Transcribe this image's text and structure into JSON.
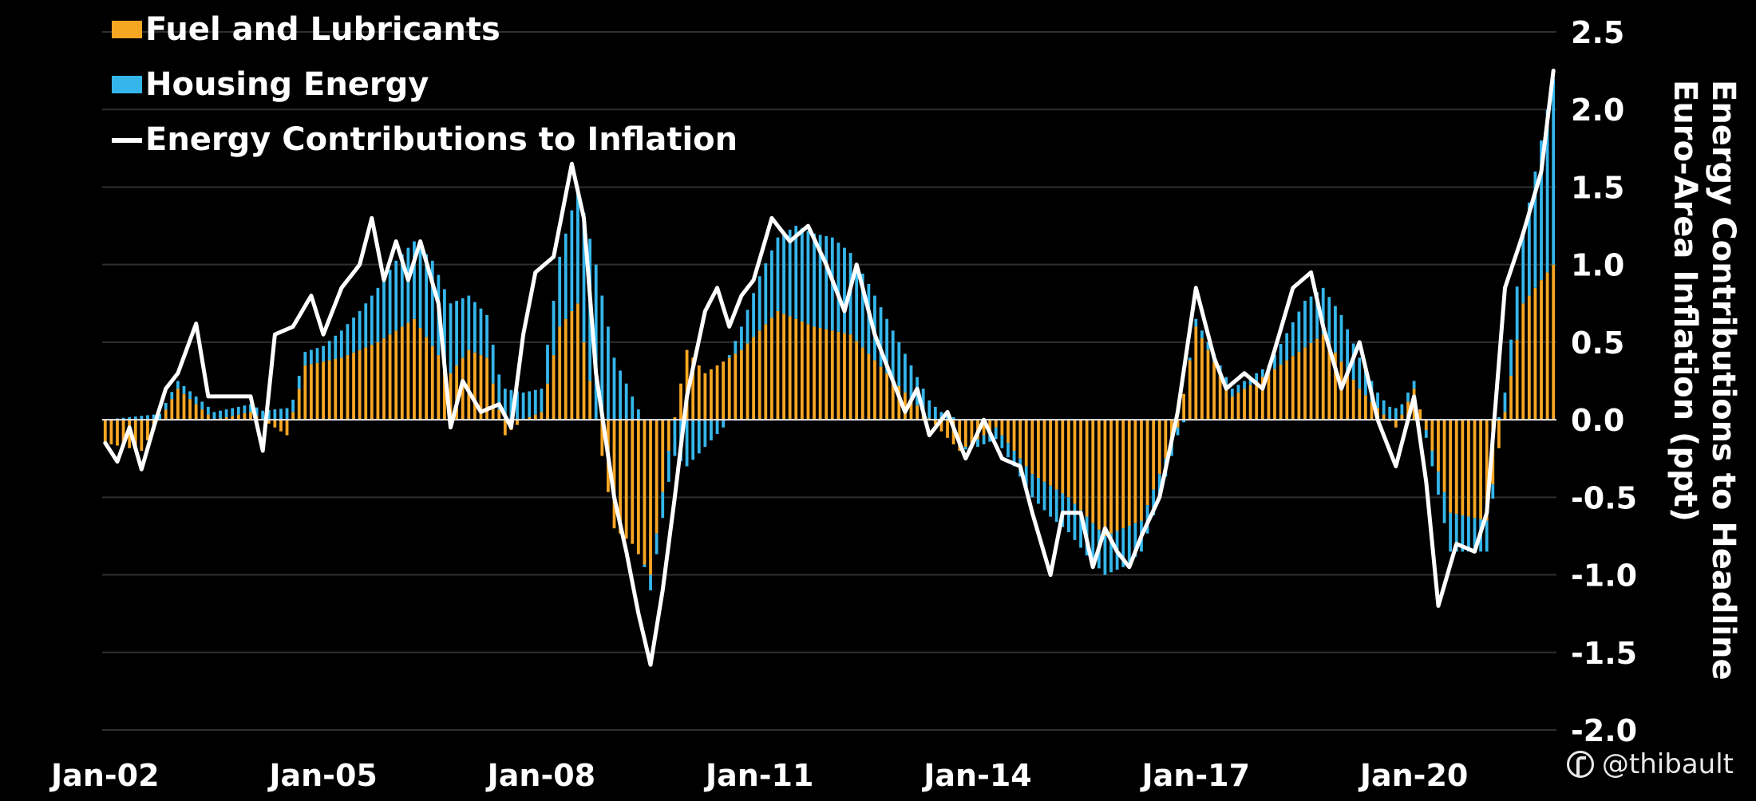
{
  "chart_data": {
    "type": "bar",
    "ylabel": "Energy Contributions to Headline Euro-Area Inflation (ppt)",
    "ylabel_lines": [
      "Energy Contributions to Headline",
      "Euro-Area Inflation (ppt)"
    ],
    "ylim": [
      -2.0,
      2.5
    ],
    "yticks": [
      -2.0,
      -1.5,
      -1.0,
      -0.5,
      0.0,
      0.5,
      1.0,
      1.5,
      2.0,
      2.5
    ],
    "ytick_labels": [
      "-2.0",
      "-1.5",
      "-1.0",
      "-0.5",
      "0.0",
      "0.5",
      "1.0",
      "1.5",
      "2.0",
      "2.5"
    ],
    "y_axis_side": "right",
    "x_start": "Jan-02",
    "xtick_labels": [
      "Jan-02",
      "Jan-05",
      "Jan-08",
      "Jan-11",
      "Jan-14",
      "Jan-17",
      "Jan-20"
    ],
    "grid": true,
    "legend_position": "top-left",
    "stacked": true,
    "frequency": "monthly",
    "series": [
      {
        "name": "Fuel and Lubricants",
        "kind": "bar",
        "color": "#F6A623",
        "anchors": [
          [
            "Jan-02",
            -0.15
          ],
          [
            "Jul-02",
            -0.2
          ],
          [
            "Jan-03",
            0.2
          ],
          [
            "Apr-03",
            0.1
          ],
          [
            "Jul-03",
            0.0
          ],
          [
            "Jan-04",
            0.05
          ],
          [
            "Jul-04",
            -0.1
          ],
          [
            "Oct-04",
            0.35
          ],
          [
            "Apr-05",
            0.4
          ],
          [
            "Oct-05",
            0.5
          ],
          [
            "Apr-06",
            0.65
          ],
          [
            "Oct-06",
            0.3
          ],
          [
            "Jan-07",
            0.45
          ],
          [
            "Apr-07",
            0.4
          ],
          [
            "Jul-07",
            -0.1
          ],
          [
            "Oct-07",
            0.0
          ],
          [
            "Jan-08",
            0.05
          ],
          [
            "Apr-08",
            0.6
          ],
          [
            "Jul-08",
            0.75
          ],
          [
            "Oct-08",
            0.0
          ],
          [
            "Jan-09",
            -0.7
          ],
          [
            "Apr-09",
            -0.8
          ],
          [
            "Jul-09",
            -1.0
          ],
          [
            "Oct-09",
            -0.2
          ],
          [
            "Jan-10",
            0.45
          ],
          [
            "Apr-10",
            0.3
          ],
          [
            "Oct-10",
            0.45
          ],
          [
            "Apr-11",
            0.7
          ],
          [
            "Oct-11",
            0.6
          ],
          [
            "Apr-12",
            0.55
          ],
          [
            "Oct-12",
            0.3
          ],
          [
            "Apr-13",
            0.05
          ],
          [
            "Oct-13",
            -0.2
          ],
          [
            "Apr-14",
            -0.05
          ],
          [
            "Oct-14",
            -0.35
          ],
          [
            "Apr-15",
            -0.5
          ],
          [
            "Oct-15",
            -0.75
          ],
          [
            "Apr-16",
            -0.65
          ],
          [
            "Oct-16",
            -0.05
          ],
          [
            "Jan-17",
            0.6
          ],
          [
            "Jul-17",
            0.15
          ],
          [
            "Jan-18",
            0.3
          ],
          [
            "Oct-18",
            0.55
          ],
          [
            "Apr-19",
            0.2
          ],
          [
            "Oct-19",
            -0.05
          ],
          [
            "Jan-20",
            0.2
          ],
          [
            "Jul-20",
            -0.6
          ],
          [
            "Jan-21",
            -0.65
          ],
          [
            "Jul-21",
            0.75
          ],
          [
            "Dec-21",
            1.0
          ]
        ]
      },
      {
        "name": "Housing Energy",
        "kind": "bar",
        "color": "#35B6EA",
        "anchors": [
          [
            "Jan-02",
            0.0
          ],
          [
            "Jan-03",
            0.05
          ],
          [
            "Jan-04",
            0.05
          ],
          [
            "Jan-05",
            0.1
          ],
          [
            "Jul-05",
            0.25
          ],
          [
            "Jan-06",
            0.45
          ],
          [
            "Jul-06",
            0.55
          ],
          [
            "Jan-07",
            0.35
          ],
          [
            "Jul-07",
            0.2
          ],
          [
            "Jan-08",
            0.15
          ],
          [
            "Jul-08",
            0.75
          ],
          [
            "Oct-08",
            1.0
          ],
          [
            "Jan-09",
            0.4
          ],
          [
            "Jul-09",
            -0.1
          ],
          [
            "Jan-10",
            -0.3
          ],
          [
            "Jul-10",
            -0.05
          ],
          [
            "Jan-11",
            0.35
          ],
          [
            "Jul-11",
            0.6
          ],
          [
            "Jan-12",
            0.6
          ],
          [
            "Jul-12",
            0.45
          ],
          [
            "Jan-13",
            0.25
          ],
          [
            "Jul-13",
            0.05
          ],
          [
            "Jan-14",
            -0.05
          ],
          [
            "Jul-14",
            -0.1
          ],
          [
            "Jan-15",
            -0.2
          ],
          [
            "Jul-15",
            -0.25
          ],
          [
            "Jan-16",
            -0.25
          ],
          [
            "Jul-16",
            -0.15
          ],
          [
            "Jan-17",
            0.05
          ],
          [
            "Jul-17",
            0.05
          ],
          [
            "Jan-18",
            0.05
          ],
          [
            "Jul-18",
            0.3
          ],
          [
            "Jan-19",
            0.3
          ],
          [
            "Jul-19",
            0.1
          ],
          [
            "Jan-20",
            0.05
          ],
          [
            "Jul-20",
            -0.25
          ],
          [
            "Jan-21",
            -0.2
          ],
          [
            "Jul-21",
            0.45
          ],
          [
            "Dec-21",
            1.2
          ]
        ]
      },
      {
        "name": "Energy Contributions to Inflation",
        "kind": "line",
        "color": "#FFFFFF",
        "anchors": [
          [
            "Jan-02",
            -0.15
          ],
          [
            "Mar-02",
            -0.27
          ],
          [
            "May-02",
            -0.05
          ],
          [
            "Jul-02",
            -0.32
          ],
          [
            "Sep-02",
            -0.05
          ],
          [
            "Nov-02",
            0.2
          ],
          [
            "Jan-03",
            0.3
          ],
          [
            "Apr-03",
            0.62
          ],
          [
            "Jun-03",
            0.15
          ],
          [
            "Oct-03",
            0.15
          ],
          [
            "Jan-04",
            0.15
          ],
          [
            "Mar-04",
            -0.2
          ],
          [
            "May-04",
            0.55
          ],
          [
            "Aug-04",
            0.6
          ],
          [
            "Nov-04",
            0.8
          ],
          [
            "Jan-05",
            0.55
          ],
          [
            "Apr-05",
            0.85
          ],
          [
            "Jul-05",
            1.0
          ],
          [
            "Sep-05",
            1.3
          ],
          [
            "Nov-05",
            0.9
          ],
          [
            "Jan-06",
            1.15
          ],
          [
            "Mar-06",
            0.9
          ],
          [
            "May-06",
            1.15
          ],
          [
            "Aug-06",
            0.75
          ],
          [
            "Oct-06",
            -0.05
          ],
          [
            "Dec-06",
            0.25
          ],
          [
            "Mar-07",
            0.05
          ],
          [
            "Jun-07",
            0.1
          ],
          [
            "Aug-07",
            -0.05
          ],
          [
            "Oct-07",
            0.55
          ],
          [
            "Dec-07",
            0.95
          ],
          [
            "Mar-08",
            1.05
          ],
          [
            "Jun-08",
            1.65
          ],
          [
            "Aug-08",
            1.3
          ],
          [
            "Oct-08",
            0.3
          ],
          [
            "Jan-09",
            -0.5
          ],
          [
            "Mar-09",
            -0.85
          ],
          [
            "May-09",
            -1.25
          ],
          [
            "Jul-09",
            -1.58
          ],
          [
            "Sep-09",
            -1.1
          ],
          [
            "Nov-09",
            -0.5
          ],
          [
            "Jan-10",
            0.15
          ],
          [
            "Apr-10",
            0.7
          ],
          [
            "Jun-10",
            0.85
          ],
          [
            "Aug-10",
            0.6
          ],
          [
            "Oct-10",
            0.8
          ],
          [
            "Dec-10",
            0.9
          ],
          [
            "Mar-11",
            1.3
          ],
          [
            "Jun-11",
            1.15
          ],
          [
            "Sep-11",
            1.25
          ],
          [
            "Dec-11",
            1.0
          ],
          [
            "Mar-12",
            0.7
          ],
          [
            "May-12",
            1.0
          ],
          [
            "Aug-12",
            0.55
          ],
          [
            "Oct-12",
            0.35
          ],
          [
            "Jan-13",
            0.05
          ],
          [
            "Mar-13",
            0.2
          ],
          [
            "May-13",
            -0.1
          ],
          [
            "Aug-13",
            0.05
          ],
          [
            "Nov-13",
            -0.25
          ],
          [
            "Feb-14",
            0.0
          ],
          [
            "May-14",
            -0.25
          ],
          [
            "Aug-14",
            -0.3
          ],
          [
            "Oct-14",
            -0.6
          ],
          [
            "Jan-15",
            -1.0
          ],
          [
            "Mar-15",
            -0.6
          ],
          [
            "Jun-15",
            -0.6
          ],
          [
            "Aug-15",
            -0.95
          ],
          [
            "Oct-15",
            -0.7
          ],
          [
            "Dec-15",
            -0.85
          ],
          [
            "Feb-16",
            -0.95
          ],
          [
            "Apr-16",
            -0.75
          ],
          [
            "Jul-16",
            -0.5
          ],
          [
            "Oct-16",
            0.05
          ],
          [
            "Jan-17",
            0.85
          ],
          [
            "Apr-17",
            0.4
          ],
          [
            "Jun-17",
            0.2
          ],
          [
            "Sep-17",
            0.3
          ],
          [
            "Dec-17",
            0.2
          ],
          [
            "Feb-18",
            0.45
          ],
          [
            "May-18",
            0.85
          ],
          [
            "Aug-18",
            0.95
          ],
          [
            "Oct-18",
            0.6
          ],
          [
            "Jan-19",
            0.2
          ],
          [
            "Apr-19",
            0.5
          ],
          [
            "Jul-19",
            0.0
          ],
          [
            "Oct-19",
            -0.3
          ],
          [
            "Jan-20",
            0.15
          ],
          [
            "Mar-20",
            -0.4
          ],
          [
            "May-20",
            -1.2
          ],
          [
            "Aug-20",
            -0.8
          ],
          [
            "Nov-20",
            -0.85
          ],
          [
            "Jan-21",
            -0.6
          ],
          [
            "Apr-21",
            0.85
          ],
          [
            "Jul-21",
            1.2
          ],
          [
            "Oct-21",
            1.6
          ],
          [
            "Dec-21",
            2.25
          ]
        ]
      }
    ]
  },
  "watermark": {
    "text": "@thibault"
  }
}
